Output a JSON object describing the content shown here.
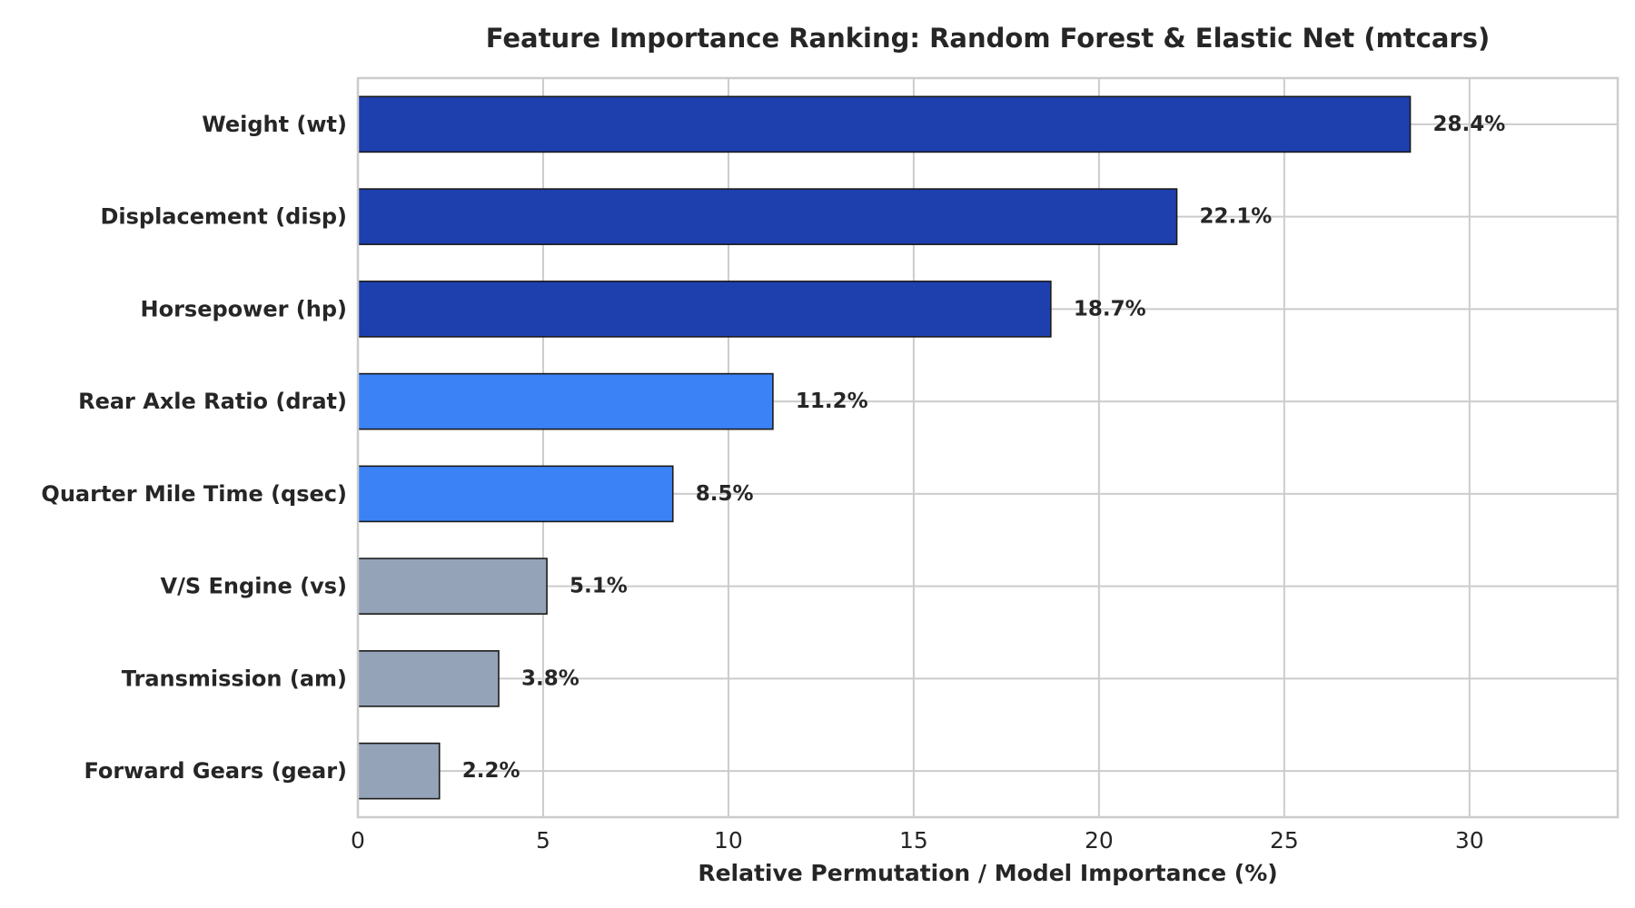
{
  "chart_data": {
    "type": "bar",
    "orientation": "horizontal",
    "title": "Feature Importance Ranking: Random Forest & Elastic Net (mtcars)",
    "xlabel": "Relative Permutation / Model Importance (%)",
    "ylabel": "",
    "xlim": [
      0,
      34
    ],
    "xticks": [
      0,
      5,
      10,
      15,
      20,
      25,
      30
    ],
    "grid": true,
    "categories": [
      "Weight (wt)",
      "Displacement (disp)",
      "Horsepower (hp)",
      "Rear Axle Ratio (drat)",
      "Quarter Mile Time (qsec)",
      "V/S Engine (vs)",
      "Transmission (am)",
      "Forward Gears (gear)"
    ],
    "values": [
      28.4,
      22.1,
      18.7,
      11.2,
      8.5,
      5.1,
      3.8,
      2.2
    ],
    "value_labels": [
      "28.4%",
      "22.1%",
      "18.7%",
      "11.2%",
      "8.5%",
      "5.1%",
      "3.8%",
      "2.2%"
    ],
    "bar_colors": [
      "#1e40af",
      "#1e40af",
      "#1e40af",
      "#3b82f6",
      "#3b82f6",
      "#94a3b8",
      "#94a3b8",
      "#94a3b8"
    ]
  }
}
